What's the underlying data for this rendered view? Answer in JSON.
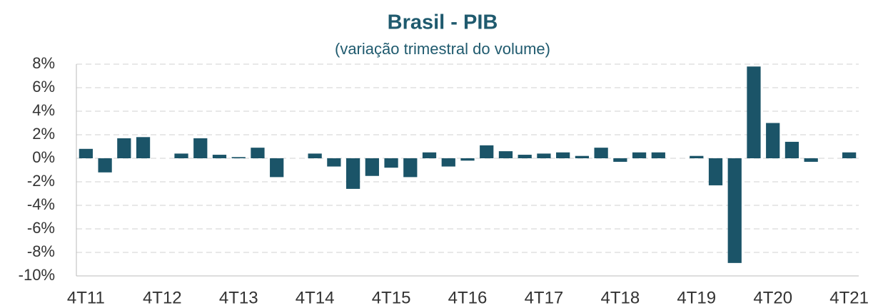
{
  "chart_data": {
    "type": "bar",
    "title": "Brasil - PIB",
    "subtitle": "(variação trimestral do volume)",
    "categories": [
      "4T11",
      null,
      null,
      null,
      "4T12",
      null,
      null,
      null,
      "4T13",
      null,
      null,
      null,
      "4T14",
      null,
      null,
      null,
      "4T15",
      null,
      null,
      null,
      "4T16",
      null,
      null,
      null,
      "4T17",
      null,
      null,
      null,
      "4T18",
      null,
      null,
      null,
      "4T19",
      null,
      null,
      null,
      "4T20",
      null,
      null,
      null,
      "4T21"
    ],
    "values": [
      0.8,
      -1.2,
      1.7,
      1.8,
      0,
      0.4,
      1.7,
      0.3,
      0.1,
      0.9,
      -1.6,
      0,
      0.4,
      -0.7,
      -2.6,
      -1.5,
      -0.8,
      -1.6,
      0.5,
      -0.7,
      -0.2,
      1.1,
      0.6,
      0.3,
      0.4,
      0.5,
      0.2,
      0.9,
      -0.3,
      0.5,
      0.5,
      0,
      0.2,
      -2.3,
      -8.9,
      7.8,
      3.0,
      1.4,
      -0.3,
      0,
      0.5
    ],
    "color": "#1b5468",
    "ylim": [
      -10,
      8
    ],
    "yticks": [
      {
        "value": -10,
        "label": "-10%"
      },
      {
        "value": -8,
        "label": "-8%"
      },
      {
        "value": -6,
        "label": "-6%"
      },
      {
        "value": -4,
        "label": "-4%"
      },
      {
        "value": -2,
        "label": "-2%"
      },
      {
        "value": 0,
        "label": "0%"
      },
      {
        "value": 2,
        "label": "2%"
      },
      {
        "value": 4,
        "label": "4%"
      },
      {
        "value": 6,
        "label": "6%"
      },
      {
        "value": 8,
        "label": "8%"
      }
    ],
    "grid": true
  }
}
